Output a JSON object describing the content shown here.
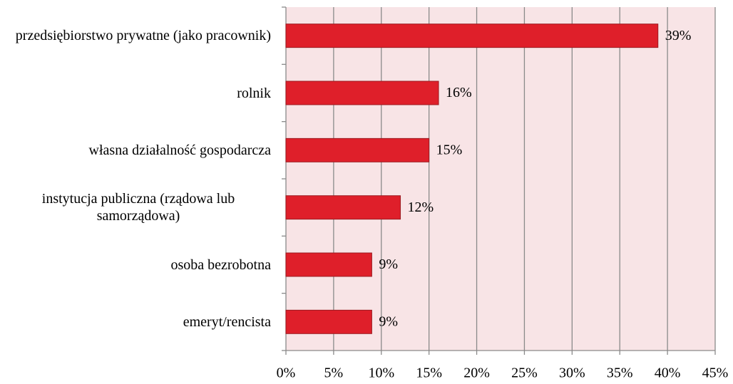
{
  "chart_data": {
    "type": "bar",
    "orientation": "horizontal",
    "categories": [
      "przedsiębiorstwo prywatne (jako pracownik)",
      "rolnik",
      "własna działalność gospodarcza",
      "instytucja publiczna (rządowa lub samorządowa)",
      "osoba bezrobotna",
      "emeryt/rencista"
    ],
    "values": [
      39,
      16,
      15,
      12,
      9,
      9
    ],
    "value_labels": [
      "39%",
      "16%",
      "15%",
      "12%",
      "9%",
      "9%"
    ],
    "color": "#df1f2a",
    "xlim": [
      0,
      45
    ],
    "xticks": [
      {
        "value": 0,
        "label": "0%"
      },
      {
        "value": 5,
        "label": "5%"
      },
      {
        "value": 10,
        "label": "10%"
      },
      {
        "value": 15,
        "label": "15%"
      },
      {
        "value": 20,
        "label": "20%"
      },
      {
        "value": 25,
        "label": "25%"
      },
      {
        "value": 30,
        "label": "30%"
      },
      {
        "value": 35,
        "label": "35%"
      },
      {
        "value": 40,
        "label": "40%"
      },
      {
        "value": 45,
        "label": "45%"
      }
    ],
    "grid": true
  }
}
